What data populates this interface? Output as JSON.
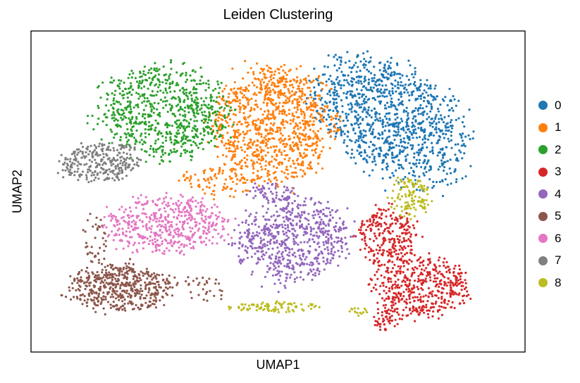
{
  "chart_data": {
    "type": "scatter",
    "title": "Leiden Clustering",
    "xlabel": "UMAP1",
    "ylabel": "UMAP2",
    "xlim": [
      0,
      100
    ],
    "ylim": [
      0,
      100
    ],
    "grid": false,
    "legend_placement": "right",
    "series": [
      {
        "name": "0",
        "color": "#1f77b4",
        "regions": [
          [
            73,
            72,
            13,
            21,
            0.5,
            1100
          ]
        ]
      },
      {
        "name": "1",
        "color": "#ff7f0e",
        "regions": [
          [
            49,
            71,
            12,
            18,
            0,
            1000
          ],
          [
            38,
            53,
            8,
            5,
            0,
            90
          ]
        ]
      },
      {
        "name": "2",
        "color": "#2ca02c",
        "regions": [
          [
            27,
            75,
            13,
            14,
            0.2,
            750
          ]
        ]
      },
      {
        "name": "3",
        "color": "#d62728",
        "regions": [
          [
            79,
            20,
            10,
            9,
            0,
            450
          ],
          [
            72,
            36,
            6,
            9,
            0,
            250
          ],
          [
            72,
            10,
            3,
            4,
            0,
            50
          ]
        ]
      },
      {
        "name": "4",
        "color": "#9467bd",
        "regions": [
          [
            53,
            35,
            11,
            13,
            -0.3,
            650
          ],
          [
            49,
            50,
            5,
            3,
            0,
            60
          ]
        ]
      },
      {
        "name": "5",
        "color": "#8c564b",
        "regions": [
          [
            18,
            20,
            11,
            7,
            0,
            500
          ],
          [
            13,
            35,
            2.5,
            8,
            0,
            40
          ],
          [
            35,
            20,
            5,
            4,
            0,
            30
          ]
        ]
      },
      {
        "name": "6",
        "color": "#e377c2",
        "regions": [
          [
            27,
            40,
            12,
            9,
            0,
            500
          ]
        ]
      },
      {
        "name": "7",
        "color": "#7f7f7f",
        "regions": [
          [
            14,
            59,
            8,
            6,
            0.2,
            280
          ]
        ]
      },
      {
        "name": "8",
        "color": "#bcbd22",
        "regions": [
          [
            77,
            48,
            4,
            6,
            0,
            120
          ],
          [
            50,
            14,
            10,
            1.5,
            0,
            90
          ],
          [
            66,
            13,
            2,
            1.5,
            0,
            15
          ]
        ]
      }
    ]
  }
}
